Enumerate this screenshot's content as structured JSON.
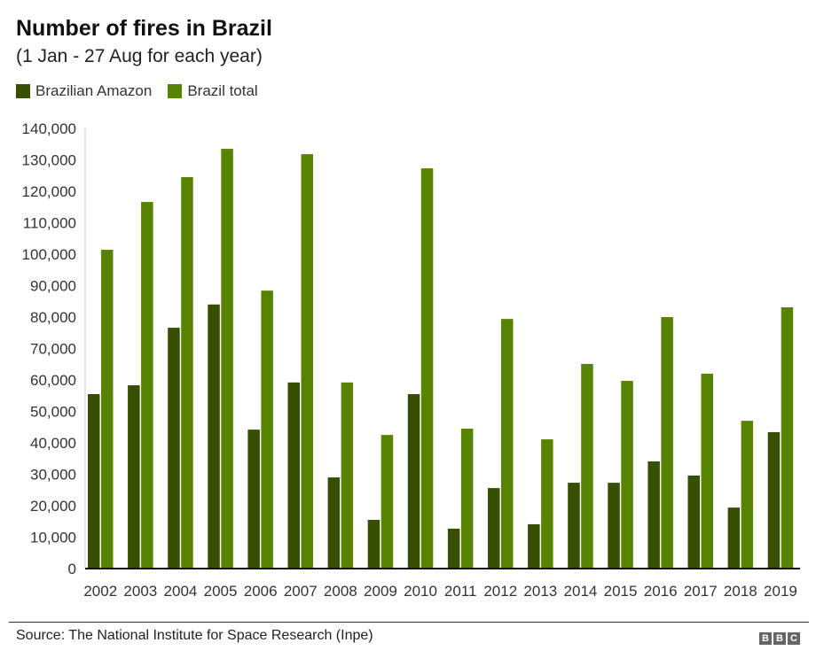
{
  "chart_data": {
    "type": "bar",
    "title": "Number of fires in Brazil",
    "subtitle": "(1 Jan - 27 Aug for each year)",
    "xlabel": "",
    "ylabel": "",
    "ylim": [
      0,
      140000
    ],
    "yticks": [
      0,
      10000,
      20000,
      30000,
      40000,
      50000,
      60000,
      70000,
      80000,
      90000,
      100000,
      110000,
      120000,
      130000,
      140000
    ],
    "ytick_labels": [
      "0",
      "10,000",
      "20,000",
      "30,000",
      "40,000",
      "50,000",
      "60,000",
      "70,000",
      "80,000",
      "90,000",
      "100,000",
      "110,000",
      "120,000",
      "130,000",
      "140,000"
    ],
    "grid": false,
    "legend_position": "top-left",
    "categories": [
      "2002",
      "2003",
      "2004",
      "2005",
      "2006",
      "2007",
      "2008",
      "2009",
      "2010",
      "2011",
      "2012",
      "2013",
      "2014",
      "2015",
      "2016",
      "2017",
      "2018",
      "2019"
    ],
    "series": [
      {
        "name": "Brazilian Amazon",
        "color": "#364f00",
        "values": [
          55500,
          58300,
          76600,
          84000,
          44200,
          59200,
          29000,
          15500,
          55500,
          12700,
          25600,
          14100,
          27300,
          27300,
          34100,
          29600,
          19400,
          43400
        ]
      },
      {
        "name": "Brazil total",
        "color": "#588300",
        "values": [
          101400,
          116600,
          124500,
          133500,
          88400,
          131800,
          59200,
          42500,
          127300,
          44500,
          79400,
          41100,
          65100,
          59700,
          80000,
          62000,
          47000,
          83100
        ]
      }
    ]
  },
  "footer": {
    "source": "Source: The National Institute for Space Research (Inpe)",
    "logo_letters": [
      "B",
      "B",
      "C"
    ]
  }
}
